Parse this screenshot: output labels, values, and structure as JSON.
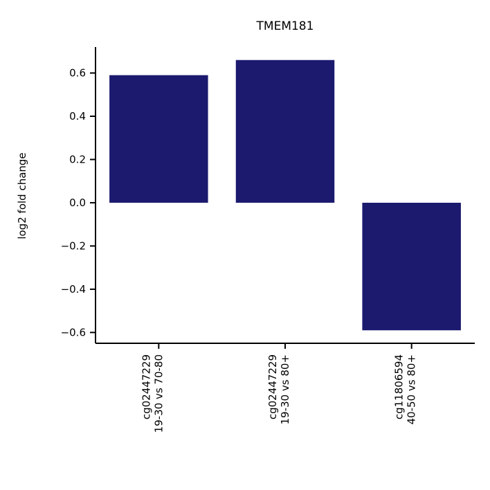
{
  "chart_data": {
    "type": "bar",
    "title": "TMEM181",
    "xlabel": "",
    "ylabel": "log2 fold change",
    "categories": [
      [
        "cg02447229",
        "19-30 vs 70-80"
      ],
      [
        "cg02447229",
        "19-30 vs 80+"
      ],
      [
        "cg11806594",
        "40-50 vs 80+"
      ]
    ],
    "values": [
      0.59,
      0.66,
      -0.59
    ],
    "ylim": [
      -0.65,
      0.72
    ],
    "yticks": [
      0.6,
      0.4,
      0.2,
      0.0,
      -0.2,
      -0.4,
      -0.6
    ],
    "ytick_labels": [
      "0.6",
      "0.4",
      "0.2",
      "0.0",
      "−0.2",
      "−0.4",
      "−0.6"
    ],
    "bar_color": "#1b1a6e",
    "grid": false
  }
}
